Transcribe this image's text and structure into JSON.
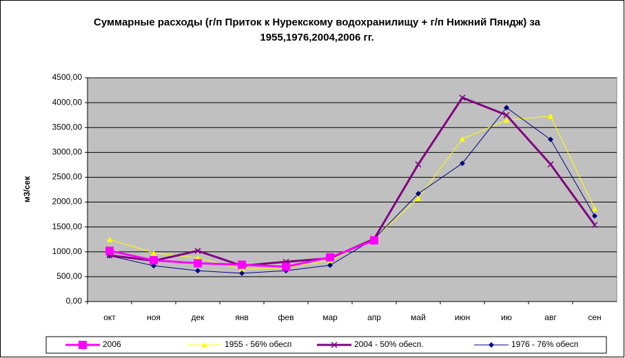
{
  "chart_data": {
    "type": "line",
    "title": "Суммарные расходы (г/п Приток к Нурекскому водохранилищу + г/п Нижний Пяндж) за 1955,1976,2004,2006 гг.",
    "y_label": "м3/сек",
    "categories": [
      "окт",
      "ноя",
      "дек",
      "янв",
      "фев",
      "мар",
      "апр",
      "май",
      "июн",
      "ию",
      "авг",
      "сен"
    ],
    "ylim": [
      0,
      4500
    ],
    "yticks": [
      {
        "value": 0,
        "label": "0,00"
      },
      {
        "value": 500,
        "label": "500,00"
      },
      {
        "value": 1000,
        "label": "1000,00"
      },
      {
        "value": 1500,
        "label": "1500,00"
      },
      {
        "value": 2000,
        "label": "2000,00"
      },
      {
        "value": 2500,
        "label": "2500,00"
      },
      {
        "value": 3000,
        "label": "3000,00"
      },
      {
        "value": 3500,
        "label": "3500,00"
      },
      {
        "value": 4000,
        "label": "4000,00"
      },
      {
        "value": 4500,
        "label": "4500,00"
      }
    ],
    "grid": true,
    "legend": "bottom",
    "series": [
      {
        "name": "2006",
        "color": "#ff00ff",
        "marker": "square",
        "values": [
          1020,
          830,
          770,
          740,
          700,
          890,
          1230,
          null,
          null,
          null,
          null,
          null
        ]
      },
      {
        "name": "1955 - 56% обесп",
        "color": "#ffff00",
        "marker": "triangle",
        "values": [
          1250,
          980,
          880,
          650,
          680,
          830,
          1270,
          2080,
          3270,
          3650,
          3730,
          1870
        ]
      },
      {
        "name": "2004 - 50% обесп.",
        "color": "#800080",
        "marker": "x",
        "values": [
          930,
          820,
          1020,
          720,
          800,
          870,
          1260,
          2760,
          4100,
          3750,
          2760,
          1540
        ]
      },
      {
        "name": "1976 - 76% обесп",
        "color": "#000080",
        "marker": "diamond",
        "values": [
          920,
          720,
          620,
          570,
          620,
          730,
          1260,
          2170,
          2780,
          3900,
          3260,
          1720
        ]
      }
    ]
  }
}
